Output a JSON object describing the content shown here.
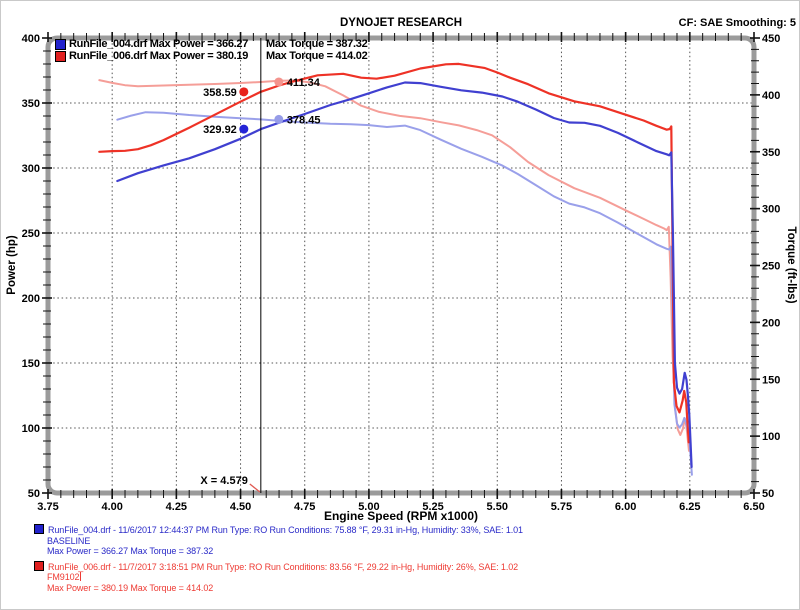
{
  "header": {
    "title": "DYNOJET RESEARCH",
    "correction": "CF: SAE  Smoothing: 5"
  },
  "chart_data": {
    "type": "line",
    "title": "DYNOJET RESEARCH",
    "x_axis": {
      "label": "Engine Speed (RPM x1000)",
      "min": 3.75,
      "max": 6.5,
      "major_step": 0.25,
      "minor_step": 0.05,
      "tick_decimals": 2
    },
    "y_left": {
      "label": "Power (hp)",
      "min": 50,
      "max": 400,
      "major_step": 50,
      "minor_step": 10
    },
    "y_right": {
      "label": "Torque (ft-lbs)",
      "min": 50,
      "max": 450,
      "major_step": 50,
      "minor_step": 10
    },
    "grid": {
      "h_values_left_axis": [
        400,
        350,
        300,
        250,
        200,
        150,
        100
      ],
      "v_start": 4.0,
      "v_end": 6.25,
      "v_step": 0.25,
      "style": "dotted"
    },
    "legend": [
      {
        "file_and_power": "RunFile_004.drf Max Power = 366.27",
        "torque": "Max Torque = 387.32",
        "chip_color": "#2222cc"
      },
      {
        "file_and_power": "RunFile_006.drf Max Power = 380.19",
        "torque": "Max Torque = 414.02",
        "chip_color": "#e02020"
      }
    ],
    "cursor": {
      "x": 4.579,
      "label": "X = 4.579"
    },
    "markers": [
      {
        "label": "358.59",
        "value": 358.59,
        "axis": "left",
        "side": "left",
        "color": "#e8231c"
      },
      {
        "label": "411.34",
        "value": 411.34,
        "axis": "right",
        "side": "right",
        "color": "#f4948e"
      },
      {
        "label": "329.92",
        "value": 329.92,
        "axis": "left",
        "side": "left",
        "color": "#2525d6"
      },
      {
        "label": "378.45",
        "value": 378.45,
        "axis": "right",
        "side": "right",
        "color": "#969ce8"
      }
    ],
    "series": [
      {
        "name": "RunFile_006.drf Torque",
        "axis": "right",
        "color": "#f59e98",
        "width": 2,
        "points": [
          [
            3.95,
            413
          ],
          [
            4.0,
            410.5
          ],
          [
            4.05,
            408.5
          ],
          [
            4.1,
            407.6
          ],
          [
            4.2,
            408.2
          ],
          [
            4.3,
            408.9
          ],
          [
            4.4,
            409.6
          ],
          [
            4.5,
            410.4
          ],
          [
            4.579,
            411.34
          ],
          [
            4.65,
            412.5
          ],
          [
            4.71,
            412.6
          ],
          [
            4.77,
            411
          ],
          [
            4.83,
            407.5
          ],
          [
            4.9,
            399.5
          ],
          [
            4.97,
            390.5
          ],
          [
            5.04,
            385
          ],
          [
            5.12,
            381.5
          ],
          [
            5.2,
            379.5
          ],
          [
            5.28,
            376
          ],
          [
            5.35,
            373.2
          ],
          [
            5.42,
            369
          ],
          [
            5.48,
            364.5
          ],
          [
            5.55,
            354
          ],
          [
            5.62,
            341
          ],
          [
            5.7,
            329.5
          ],
          [
            5.8,
            318
          ],
          [
            5.9,
            309.5
          ],
          [
            6.0,
            298.5
          ],
          [
            6.07,
            291
          ],
          [
            6.12,
            285.5
          ],
          [
            6.15,
            282.5
          ],
          [
            6.16,
            281
          ],
          [
            6.168,
            284
          ],
          [
            6.175,
            240
          ],
          [
            6.183,
            170
          ],
          [
            6.193,
            124
          ],
          [
            6.203,
            106
          ],
          [
            6.213,
            101
          ],
          [
            6.223,
            106.5
          ],
          [
            6.231,
            115.5
          ],
          [
            6.237,
            108
          ],
          [
            6.243,
            95
          ],
          [
            6.247,
            87
          ]
        ]
      },
      {
        "name": "RunFile_004.drf Torque",
        "axis": "right",
        "color": "#9aa0ea",
        "width": 2,
        "points": [
          [
            4.02,
            378.2
          ],
          [
            4.07,
            381.5
          ],
          [
            4.13,
            384.8
          ],
          [
            4.2,
            384.3
          ],
          [
            4.3,
            382.3
          ],
          [
            4.4,
            380.8
          ],
          [
            4.5,
            379.5
          ],
          [
            4.579,
            378.45
          ],
          [
            4.66,
            377
          ],
          [
            4.75,
            375.7
          ],
          [
            4.85,
            374.7
          ],
          [
            4.93,
            374.2
          ],
          [
            5.0,
            373.4
          ],
          [
            5.07,
            371.8
          ],
          [
            5.14,
            373
          ],
          [
            5.2,
            369
          ],
          [
            5.28,
            360.6
          ],
          [
            5.36,
            352.6
          ],
          [
            5.44,
            345.6
          ],
          [
            5.52,
            337.8
          ],
          [
            5.58,
            330.4
          ],
          [
            5.65,
            320.7
          ],
          [
            5.72,
            310.8
          ],
          [
            5.78,
            304.4
          ],
          [
            5.84,
            301.1
          ],
          [
            5.9,
            296
          ],
          [
            5.97,
            287.7
          ],
          [
            6.05,
            277.4
          ],
          [
            6.12,
            268.6
          ],
          [
            6.16,
            264.7
          ],
          [
            6.17,
            264
          ],
          [
            6.176,
            266.5
          ],
          [
            6.182,
            215
          ],
          [
            6.19,
            128
          ],
          [
            6.2,
            111
          ],
          [
            6.21,
            107.5
          ],
          [
            6.22,
            110.5
          ],
          [
            6.229,
            116
          ],
          [
            6.236,
            111
          ],
          [
            6.243,
            103
          ],
          [
            6.249,
            96
          ],
          [
            6.254,
            80
          ],
          [
            6.258,
            66
          ]
        ]
      },
      {
        "name": "RunFile_006.drf Power",
        "axis": "left",
        "color": "#ee3226",
        "width": 2.2,
        "points": [
          [
            3.95,
            312.5
          ],
          [
            4.0,
            313
          ],
          [
            4.05,
            313.2
          ],
          [
            4.1,
            314.5
          ],
          [
            4.15,
            317.5
          ],
          [
            4.2,
            321.5
          ],
          [
            4.3,
            331
          ],
          [
            4.4,
            341
          ],
          [
            4.5,
            351
          ],
          [
            4.579,
            358.59
          ],
          [
            4.65,
            363.5
          ],
          [
            4.7,
            366.3
          ],
          [
            4.8,
            371.3
          ],
          [
            4.9,
            372.5
          ],
          [
            4.97,
            369.5
          ],
          [
            5.03,
            368.7
          ],
          [
            5.1,
            371
          ],
          [
            5.2,
            376.5
          ],
          [
            5.3,
            379.8
          ],
          [
            5.35,
            380.1
          ],
          [
            5.45,
            377
          ],
          [
            5.5,
            373.5
          ],
          [
            5.55,
            369.5
          ],
          [
            5.62,
            364.5
          ],
          [
            5.7,
            357.5
          ],
          [
            5.8,
            351.3
          ],
          [
            5.9,
            347.5
          ],
          [
            6.0,
            341
          ],
          [
            6.07,
            336.5
          ],
          [
            6.12,
            332.5
          ],
          [
            6.16,
            329.5
          ],
          [
            6.172,
            330
          ],
          [
            6.178,
            332
          ],
          [
            6.182,
            250
          ],
          [
            6.188,
            135
          ],
          [
            6.198,
            117
          ],
          [
            6.21,
            112
          ],
          [
            6.222,
            121
          ],
          [
            6.228,
            128.5
          ],
          [
            6.236,
            120
          ],
          [
            6.242,
            100
          ],
          [
            6.246,
            89
          ]
        ]
      },
      {
        "name": "RunFile_004.drf Power",
        "axis": "left",
        "color": "#4040d0",
        "width": 2.2,
        "points": [
          [
            4.02,
            290
          ],
          [
            4.1,
            296
          ],
          [
            4.2,
            302
          ],
          [
            4.3,
            307.5
          ],
          [
            4.4,
            314.5
          ],
          [
            4.5,
            322.5
          ],
          [
            4.579,
            329.92
          ],
          [
            4.66,
            335.5
          ],
          [
            4.75,
            341.5
          ],
          [
            4.85,
            348.5
          ],
          [
            4.93,
            353
          ],
          [
            5.0,
            357.5
          ],
          [
            5.07,
            362
          ],
          [
            5.14,
            365.8
          ],
          [
            5.2,
            365.3
          ],
          [
            5.28,
            362.5
          ],
          [
            5.36,
            359.8
          ],
          [
            5.44,
            358
          ],
          [
            5.52,
            355
          ],
          [
            5.58,
            351
          ],
          [
            5.65,
            345
          ],
          [
            5.72,
            338.5
          ],
          [
            5.78,
            335
          ],
          [
            5.84,
            334.8
          ],
          [
            5.9,
            332.5
          ],
          [
            5.97,
            327
          ],
          [
            6.05,
            319.5
          ],
          [
            6.12,
            313
          ],
          [
            6.16,
            310.5
          ],
          [
            6.17,
            309.8
          ],
          [
            6.178,
            312
          ],
          [
            6.184,
            250
          ],
          [
            6.192,
            150
          ],
          [
            6.2,
            131
          ],
          [
            6.21,
            126.5
          ],
          [
            6.22,
            130
          ],
          [
            6.23,
            142.5
          ],
          [
            6.237,
            137
          ],
          [
            6.243,
            124
          ],
          [
            6.248,
            110
          ],
          [
            6.253,
            88
          ],
          [
            6.257,
            70
          ]
        ]
      }
    ]
  },
  "footer": {
    "runs": [
      {
        "text_color": "#2a2ac8",
        "chip_color": "#2222cc",
        "line1": "RunFile_004.drf - 11/6/2017 12:44:37 PM  Run Type: RO  Run Conditions: 75.88 °F, 29.31 in-Hg,  Humidity:  33%, SAE: 1.01",
        "line2": "BASELINE",
        "line3": "Max Power = 366.27  Max Torque = 387.32"
      },
      {
        "text_color": "#ee3b34",
        "chip_color": "#e02020",
        "line1": "RunFile_006.drf - 11/7/2017 3:18:51 PM  Run Type: RO  Run Conditions: 83.56 °F, 29.22 in-Hg,  Humidity:  26%, SAE: 1.02",
        "line2": "FM9102",
        "line3": "Max Power = 380.19  Max Torque = 414.02"
      }
    ]
  }
}
